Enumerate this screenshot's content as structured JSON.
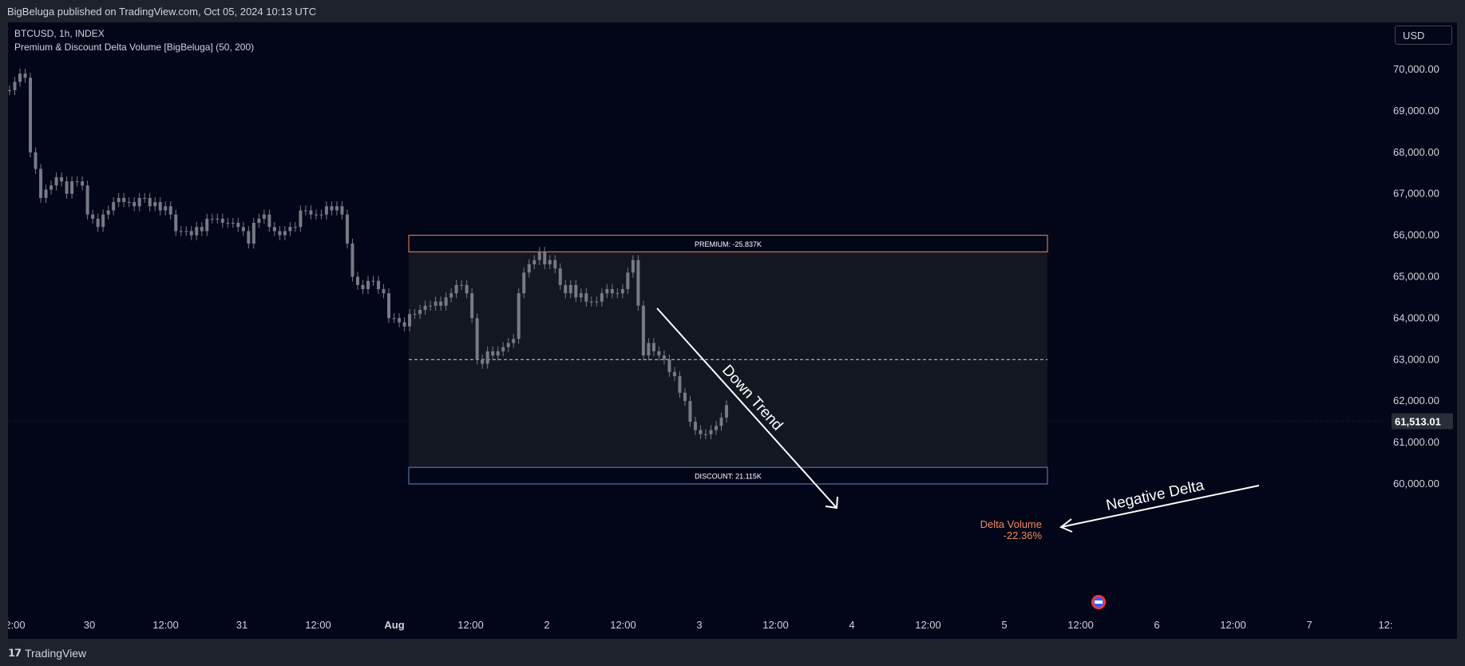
{
  "header": {
    "published": "BigBeluga published on TradingView.com, Oct 05, 2024 10:13 UTC"
  },
  "legend": {
    "symbol": "BTCUSD, 1h, INDEX",
    "indicator": "Premium & Discount Delta Volume [BigBeluga] (50, 200)"
  },
  "currency_button": "USD",
  "footer": {
    "brand": "TradingView"
  },
  "colors": {
    "background": "#020618",
    "candle": "#787b86",
    "premium_box": "#f08a5d",
    "discount_box": "#5d88c8",
    "delta_text": "#f08a5d",
    "annotation": "#ffffff"
  },
  "chart_data": {
    "type": "candlestick",
    "title": "BTCUSD, 1h, INDEX",
    "y_axis": {
      "ticks": [
        "70,000.00",
        "69,000.00",
        "68,000.00",
        "67,000.00",
        "66,000.00",
        "65,000.00",
        "64,000.00",
        "63,000.00",
        "62,000.00",
        "61,000.00",
        "60,000.00"
      ],
      "tick_values": [
        70000,
        69000,
        68000,
        67000,
        66000,
        65000,
        64000,
        63000,
        62000,
        61000,
        60000
      ],
      "current_price_label": "61,513.01",
      "current_price": 61513.01
    },
    "x_axis": {
      "ticks": [
        "2:00",
        "30",
        "12:00",
        "31",
        "12:00",
        "Aug",
        "12:00",
        "2",
        "12:00",
        "3",
        "12:00",
        "4",
        "12:00",
        "5",
        "12:00",
        "6",
        "12:00",
        "7",
        "12:"
      ],
      "bold_ticks": [
        "Aug"
      ]
    },
    "candles_close": [
      69500,
      69700,
      69900,
      69800,
      68000,
      67600,
      66900,
      67100,
      67200,
      67400,
      67300,
      67000,
      67300,
      67300,
      67200,
      66500,
      66400,
      66200,
      66500,
      66600,
      66800,
      66900,
      66800,
      66800,
      66700,
      66900,
      66900,
      66700,
      66800,
      66600,
      66700,
      66500,
      66100,
      66100,
      66100,
      66000,
      66200,
      66100,
      66400,
      66400,
      66400,
      66300,
      66300,
      66300,
      66200,
      66100,
      65800,
      66300,
      66400,
      66500,
      66200,
      66100,
      66000,
      66100,
      66200,
      66200,
      66600,
      66600,
      66500,
      66500,
      66500,
      66700,
      66600,
      66700,
      66500,
      65800,
      65000,
      64800,
      64700,
      64900,
      64900,
      64700,
      64600,
      64000,
      64000,
      63900,
      63800,
      64100,
      64100,
      64200,
      64300,
      64300,
      64400,
      64300,
      64500,
      64600,
      64800,
      64800,
      64600,
      64000,
      63000,
      62900,
      63200,
      63100,
      63200,
      63300,
      63400,
      63500,
      64600,
      65100,
      65300,
      65400,
      65600,
      65300,
      65400,
      65200,
      64800,
      64600,
      64800,
      64500,
      64600,
      64400,
      64400,
      64400,
      64600,
      64700,
      64600,
      64600,
      64700,
      65100,
      65400,
      64300,
      63100,
      63400,
      63200,
      63100,
      63000,
      62700,
      62600,
      62200,
      62000,
      61500,
      61300,
      61200,
      61200,
      61300,
      61400,
      61600,
      61900
    ],
    "premium_label": "PREMIUM: -25.837K",
    "discount_label": "DISCOUNT: 21.115K",
    "range_top": 66000,
    "range_bottom": 60000,
    "premium_level": 65600,
    "discount_level": 60400,
    "mid_level": 63000,
    "delta_volume_label": "Delta Volume",
    "delta_volume_value": "-22.36%",
    "annotations": [
      "Down Trend",
      "Negative Delta"
    ]
  }
}
